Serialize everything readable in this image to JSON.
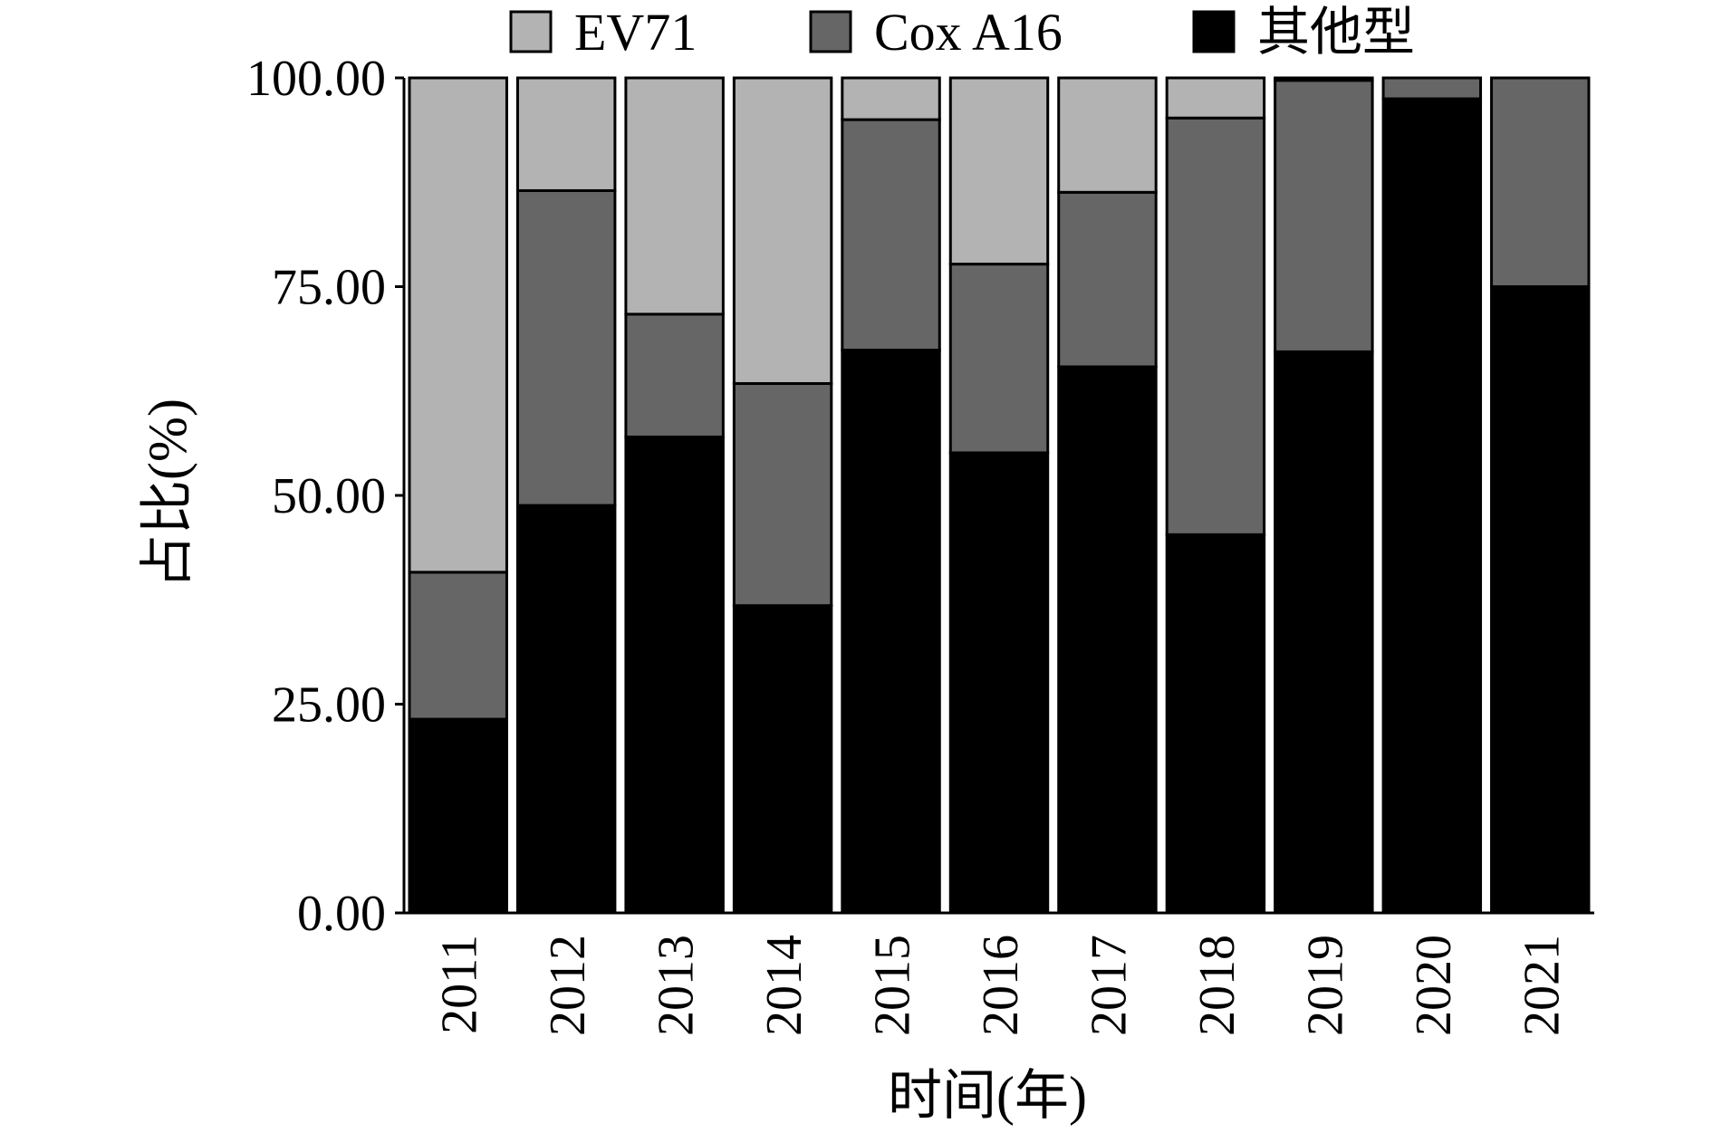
{
  "chart_data": {
    "type": "bar",
    "stacked": true,
    "title": "",
    "xlabel": "时间(年)",
    "ylabel": "占比(%)",
    "ylim": [
      0,
      100
    ],
    "yticks": [
      "0.00",
      "25.00",
      "50.00",
      "75.00",
      "100.00"
    ],
    "categories": [
      "2011",
      "2012",
      "2013",
      "2014",
      "2015",
      "2016",
      "2017",
      "2018",
      "2019",
      "2020",
      "2021"
    ],
    "legend_position": "top",
    "series": [
      {
        "name": "其他型",
        "color": "#000000",
        "values": [
          23.2,
          48.8,
          57.0,
          36.8,
          67.4,
          55.1,
          65.4,
          45.3,
          67.2,
          97.5,
          75.0
        ]
      },
      {
        "name": "Cox A16",
        "color": "#666666",
        "values": [
          17.6,
          37.7,
          14.7,
          26.6,
          27.6,
          22.6,
          20.9,
          49.9,
          32.5,
          2.5,
          25.0
        ]
      },
      {
        "name": "EV71",
        "color": "#b3b3b3",
        "values": [
          59.2,
          13.5,
          28.3,
          36.6,
          5.0,
          22.3,
          13.7,
          4.8,
          0.3,
          0.0,
          0.0
        ]
      }
    ],
    "legend_order": [
      "EV71",
      "Cox A16",
      "其他型"
    ]
  }
}
